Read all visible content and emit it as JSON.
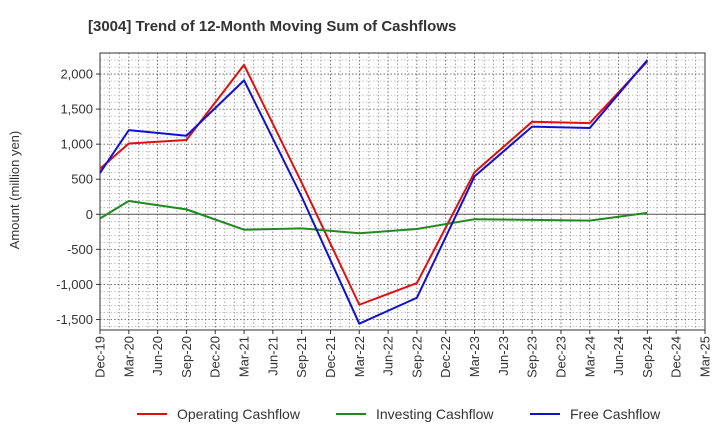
{
  "chart_data": {
    "type": "line",
    "title": "[3004]  Trend of 12-Month Moving Sum of Cashflows",
    "xlabel": "",
    "ylabel": "Amount (million yen)",
    "categories": [
      "Dec-19",
      "Mar-20",
      "Jun-20",
      "Sep-20",
      "Dec-20",
      "Mar-21",
      "Jun-21",
      "Sep-21",
      "Dec-21",
      "Mar-22",
      "Jun-22",
      "Sep-22",
      "Dec-22",
      "Mar-23",
      "Jun-23",
      "Sep-23",
      "Dec-23",
      "Mar-24",
      "Jun-24",
      "Sep-24",
      "Dec-24",
      "Mar-25"
    ],
    "yticks": [
      -1500,
      -1000,
      -500,
      0,
      500,
      1000,
      1500,
      2000
    ],
    "ytick_labels": [
      "-1,500",
      "-1,000",
      "-500",
      "0",
      "500",
      "1,000",
      "1,500",
      "2,000"
    ],
    "ylim": [
      -1650,
      2300
    ],
    "grid": true,
    "legend_position": "bottom",
    "series": [
      {
        "name": "Operating Cashflow",
        "color": "#dd1111",
        "x": [
          "Dec-19",
          "Mar-20",
          "Sep-20",
          "Mar-21",
          "Sep-21",
          "Mar-22",
          "Sep-22",
          "Mar-23",
          "Sep-23",
          "Mar-24",
          "Sep-24"
        ],
        "values": [
          650,
          1010,
          1060,
          2130,
          450,
          -1290,
          -980,
          600,
          1320,
          1300,
          2180
        ]
      },
      {
        "name": "Investing Cashflow",
        "color": "#228822",
        "x": [
          "Dec-19",
          "Mar-20",
          "Sep-20",
          "Mar-21",
          "Sep-21",
          "Mar-22",
          "Sep-22",
          "Mar-23",
          "Sep-23",
          "Mar-24",
          "Sep-24"
        ],
        "values": [
          -60,
          190,
          70,
          -220,
          -200,
          -270,
          -210,
          -70,
          -80,
          -90,
          20
        ]
      },
      {
        "name": "Free Cashflow",
        "color": "#1111cc",
        "x": [
          "Dec-19",
          "Mar-20",
          "Sep-20",
          "Mar-21",
          "Sep-21",
          "Mar-22",
          "Sep-22",
          "Mar-23",
          "Sep-23",
          "Mar-24",
          "Sep-24"
        ],
        "values": [
          590,
          1200,
          1120,
          1910,
          250,
          -1560,
          -1190,
          540,
          1250,
          1230,
          2200
        ]
      }
    ]
  }
}
